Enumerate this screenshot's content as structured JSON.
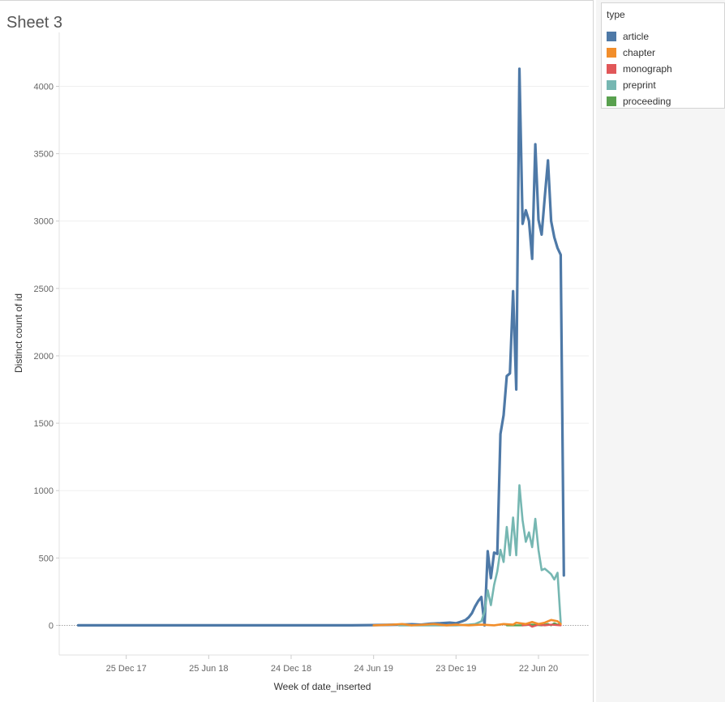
{
  "sheet": {
    "title": "Sheet 3"
  },
  "legend": {
    "title": "type",
    "items": [
      {
        "label": "article",
        "color": "#4e79a7"
      },
      {
        "label": "chapter",
        "color": "#f28e2b"
      },
      {
        "label": "monograph",
        "color": "#e15759"
      },
      {
        "label": "preprint",
        "color": "#76b7b2"
      },
      {
        "label": "proceeding",
        "color": "#59a14f"
      }
    ]
  },
  "chart_data": {
    "type": "line",
    "title": "Sheet 3",
    "xlabel": "Week of date_inserted",
    "ylabel": "Distinct count of id",
    "ylim": [
      -220,
      4400
    ],
    "xlim": [
      "2017-07-30",
      "2020-10-11"
    ],
    "yticks": [
      0,
      500,
      1000,
      1500,
      2000,
      2500,
      3000,
      3500,
      4000
    ],
    "xticks": [
      {
        "date": "2017-12-25",
        "label": "25 Dec 17"
      },
      {
        "date": "2018-06-25",
        "label": "25 Jun 18"
      },
      {
        "date": "2018-12-24",
        "label": "24 Dec 18"
      },
      {
        "date": "2019-06-24",
        "label": "24 Jun 19"
      },
      {
        "date": "2019-12-23",
        "label": "23 Dec 19"
      },
      {
        "date": "2020-06-22",
        "label": "22 Jun 20"
      }
    ],
    "grid": true,
    "legend_position": "right",
    "series": [
      {
        "name": "article",
        "color": "#4e79a7",
        "width": 3.2,
        "points": [
          [
            "2017-09-10",
            0
          ],
          [
            "2017-12-25",
            0
          ],
          [
            "2018-03-26",
            0
          ],
          [
            "2018-06-25",
            0
          ],
          [
            "2018-09-24",
            0
          ],
          [
            "2018-12-24",
            0
          ],
          [
            "2019-02-11",
            0
          ],
          [
            "2019-03-25",
            0
          ],
          [
            "2019-05-06",
            0
          ],
          [
            "2019-06-24",
            2
          ],
          [
            "2019-07-22",
            3
          ],
          [
            "2019-08-19",
            5
          ],
          [
            "2019-09-16",
            8
          ],
          [
            "2019-10-07",
            5
          ],
          [
            "2019-10-28",
            12
          ],
          [
            "2019-11-18",
            15
          ],
          [
            "2019-12-09",
            20
          ],
          [
            "2019-12-23",
            15
          ],
          [
            "2020-01-06",
            30
          ],
          [
            "2020-01-13",
            40
          ],
          [
            "2020-01-20",
            60
          ],
          [
            "2020-01-27",
            90
          ],
          [
            "2020-02-03",
            140
          ],
          [
            "2020-02-10",
            180
          ],
          [
            "2020-02-17",
            210
          ],
          [
            "2020-02-24",
            0
          ],
          [
            "2020-03-02",
            550
          ],
          [
            "2020-03-09",
            350
          ],
          [
            "2020-03-16",
            540
          ],
          [
            "2020-03-23",
            530
          ],
          [
            "2020-03-30",
            1420
          ],
          [
            "2020-04-06",
            1560
          ],
          [
            "2020-04-13",
            1850
          ],
          [
            "2020-04-20",
            1870
          ],
          [
            "2020-04-27",
            2480
          ],
          [
            "2020-05-04",
            1750
          ],
          [
            "2020-05-11",
            4130
          ],
          [
            "2020-05-18",
            2980
          ],
          [
            "2020-05-25",
            3080
          ],
          [
            "2020-06-01",
            3000
          ],
          [
            "2020-06-08",
            2720
          ],
          [
            "2020-06-15",
            3570
          ],
          [
            "2020-06-22",
            3010
          ],
          [
            "2020-06-29",
            2900
          ],
          [
            "2020-07-06",
            3180
          ],
          [
            "2020-07-13",
            3450
          ],
          [
            "2020-07-20",
            3000
          ],
          [
            "2020-07-27",
            2880
          ],
          [
            "2020-08-03",
            2800
          ],
          [
            "2020-08-10",
            2750
          ],
          [
            "2020-08-17",
            370
          ]
        ]
      },
      {
        "name": "preprint",
        "color": "#76b7b2",
        "width": 2.6,
        "points": [
          [
            "2019-08-19",
            0
          ],
          [
            "2019-10-28",
            0
          ],
          [
            "2019-12-23",
            0
          ],
          [
            "2020-01-20",
            5
          ],
          [
            "2020-02-03",
            10
          ],
          [
            "2020-02-17",
            30
          ],
          [
            "2020-02-24",
            100
          ],
          [
            "2020-03-02",
            260
          ],
          [
            "2020-03-09",
            150
          ],
          [
            "2020-03-16",
            300
          ],
          [
            "2020-03-23",
            400
          ],
          [
            "2020-03-30",
            560
          ],
          [
            "2020-04-06",
            470
          ],
          [
            "2020-04-13",
            730
          ],
          [
            "2020-04-20",
            520
          ],
          [
            "2020-04-27",
            800
          ],
          [
            "2020-05-04",
            520
          ],
          [
            "2020-05-11",
            1040
          ],
          [
            "2020-05-18",
            780
          ],
          [
            "2020-05-25",
            620
          ],
          [
            "2020-06-01",
            690
          ],
          [
            "2020-06-08",
            580
          ],
          [
            "2020-06-15",
            790
          ],
          [
            "2020-06-22",
            560
          ],
          [
            "2020-06-29",
            410
          ],
          [
            "2020-07-06",
            420
          ],
          [
            "2020-07-13",
            400
          ],
          [
            "2020-07-20",
            380
          ],
          [
            "2020-07-27",
            340
          ],
          [
            "2020-08-03",
            390
          ],
          [
            "2020-08-10",
            20
          ]
        ]
      },
      {
        "name": "proceeding",
        "color": "#59a14f",
        "width": 2.4,
        "points": [
          [
            "2020-04-13",
            0
          ],
          [
            "2020-05-18",
            0
          ],
          [
            "2020-06-08",
            5
          ],
          [
            "2020-06-29",
            0
          ],
          [
            "2020-07-13",
            10
          ],
          [
            "2020-07-20",
            0
          ],
          [
            "2020-07-27",
            15
          ],
          [
            "2020-08-03",
            5
          ],
          [
            "2020-08-10",
            10
          ]
        ]
      },
      {
        "name": "monograph",
        "color": "#e15759",
        "width": 2.4,
        "points": [
          [
            "2020-05-18",
            0
          ],
          [
            "2020-06-01",
            5
          ],
          [
            "2020-06-08",
            -10
          ],
          [
            "2020-06-22",
            5
          ],
          [
            "2020-07-06",
            0
          ],
          [
            "2020-07-20",
            5
          ],
          [
            "2020-08-10",
            0
          ]
        ]
      },
      {
        "name": "chapter",
        "color": "#f28e2b",
        "width": 2.6,
        "points": [
          [
            "2019-06-24",
            0
          ],
          [
            "2019-08-05",
            5
          ],
          [
            "2019-08-26",
            10
          ],
          [
            "2019-09-16",
            0
          ],
          [
            "2019-10-14",
            5
          ],
          [
            "2019-11-04",
            10
          ],
          [
            "2019-12-02",
            0
          ],
          [
            "2019-12-23",
            5
          ],
          [
            "2020-01-20",
            0
          ],
          [
            "2020-02-17",
            5
          ],
          [
            "2020-03-16",
            0
          ],
          [
            "2020-04-06",
            10
          ],
          [
            "2020-04-27",
            5
          ],
          [
            "2020-05-04",
            20
          ],
          [
            "2020-05-25",
            10
          ],
          [
            "2020-06-08",
            25
          ],
          [
            "2020-06-22",
            10
          ],
          [
            "2020-07-06",
            20
          ],
          [
            "2020-07-20",
            40
          ],
          [
            "2020-08-03",
            30
          ],
          [
            "2020-08-10",
            10
          ]
        ]
      }
    ]
  }
}
